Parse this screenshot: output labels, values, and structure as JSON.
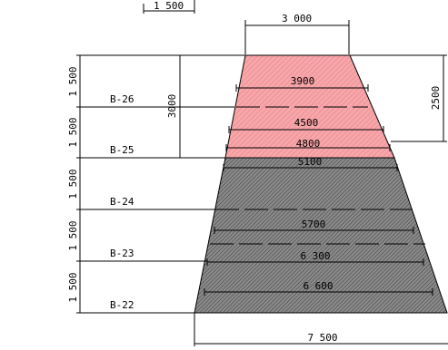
{
  "dimensions": {
    "top_left": "1 500",
    "top_width": "3 000",
    "bottom_width": "7 500",
    "height_left": "3000",
    "height_right": "2500"
  },
  "level_labels": [
    "1 500",
    "1 500",
    "1 500",
    "1 500",
    "1 500"
  ],
  "benches": [
    "B-26",
    "B-25",
    "B-24",
    "B-23",
    "B-22"
  ],
  "widths": [
    "3900",
    "4500",
    "4800",
    "5100",
    "5700",
    "6 300",
    "6 600"
  ],
  "colors": {
    "upper_fill": "#f7a6aa",
    "lower_fill": "#8a8a8a",
    "line": "#000000"
  }
}
